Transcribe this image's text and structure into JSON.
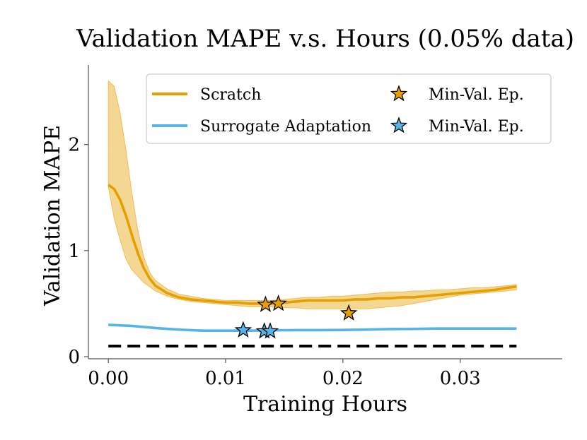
{
  "chart_data": {
    "type": "line",
    "title": "Validation MAPE v.s. Hours (0.05% data)",
    "xlabel": "Training Hours",
    "ylabel": "Validation MAPE",
    "xlim": [
      -0.0017,
      0.0387
    ],
    "ylim": [
      -0.02,
      2.75
    ],
    "xticks": [
      0.0,
      0.01,
      0.02,
      0.03
    ],
    "xtick_labels": [
      "0.00",
      "0.01",
      "0.02",
      "0.03"
    ],
    "yticks": [
      0,
      1,
      2
    ],
    "ytick_labels": [
      "0",
      "1",
      "2"
    ],
    "grid": false,
    "legend_position": "top-right",
    "colors": {
      "scratch": "#E69F00",
      "surrogate": "#56B4E9",
      "baseline": "#000000"
    },
    "series": [
      {
        "name": "Scratch",
        "color": "#E69F00",
        "x": [
          0.0,
          0.0005,
          0.001,
          0.0015,
          0.002,
          0.0025,
          0.003,
          0.0035,
          0.004,
          0.005,
          0.006,
          0.007,
          0.008,
          0.009,
          0.01,
          0.011,
          0.012,
          0.013,
          0.014,
          0.015,
          0.016,
          0.017,
          0.018,
          0.019,
          0.02,
          0.021,
          0.022,
          0.023,
          0.024,
          0.025,
          0.026,
          0.027,
          0.028,
          0.029,
          0.03,
          0.031,
          0.032,
          0.033,
          0.034,
          0.0348
        ],
        "values": [
          1.62,
          1.58,
          1.48,
          1.33,
          1.15,
          0.98,
          0.84,
          0.74,
          0.67,
          0.6,
          0.56,
          0.54,
          0.53,
          0.52,
          0.51,
          0.51,
          0.5,
          0.5,
          0.5,
          0.51,
          0.52,
          0.53,
          0.53,
          0.53,
          0.53,
          0.54,
          0.54,
          0.55,
          0.55,
          0.56,
          0.56,
          0.57,
          0.58,
          0.59,
          0.6,
          0.61,
          0.62,
          0.63,
          0.65,
          0.66
        ],
        "lower": [
          1.6,
          1.3,
          1.1,
          0.92,
          0.82,
          0.76,
          0.7,
          0.66,
          0.62,
          0.57,
          0.54,
          0.52,
          0.51,
          0.5,
          0.49,
          0.48,
          0.47,
          0.47,
          0.47,
          0.46,
          0.46,
          0.45,
          0.45,
          0.45,
          0.45,
          0.45,
          0.45,
          0.46,
          0.47,
          0.48,
          0.5,
          0.52,
          0.54,
          0.56,
          0.58,
          0.59,
          0.6,
          0.61,
          0.62,
          0.63
        ],
        "upper": [
          2.6,
          2.55,
          2.3,
          1.95,
          1.55,
          1.2,
          0.95,
          0.8,
          0.72,
          0.64,
          0.59,
          0.57,
          0.55,
          0.54,
          0.53,
          0.53,
          0.53,
          0.53,
          0.53,
          0.54,
          0.55,
          0.56,
          0.56,
          0.57,
          0.57,
          0.58,
          0.59,
          0.6,
          0.61,
          0.61,
          0.62,
          0.62,
          0.63,
          0.63,
          0.64,
          0.65,
          0.65,
          0.66,
          0.67,
          0.68
        ]
      },
      {
        "name": "Surrogate Adaptation",
        "color": "#56B4E9",
        "x": [
          0.0,
          0.002,
          0.004,
          0.006,
          0.008,
          0.01,
          0.012,
          0.014,
          0.016,
          0.018,
          0.02,
          0.022,
          0.024,
          0.026,
          0.028,
          0.03,
          0.032,
          0.034,
          0.0348
        ],
        "values": [
          0.3,
          0.29,
          0.27,
          0.255,
          0.245,
          0.245,
          0.245,
          0.248,
          0.25,
          0.25,
          0.252,
          0.255,
          0.26,
          0.262,
          0.265,
          0.265,
          0.265,
          0.265,
          0.265
        ]
      },
      {
        "name": "",
        "color": "#000000",
        "dashed": true,
        "x": [
          0.0,
          0.0348
        ],
        "values": [
          0.1,
          0.1
        ]
      }
    ],
    "markers": [
      {
        "series": "Scratch",
        "label": "Min-Val. Ep.",
        "color": "#E69F00",
        "points": [
          {
            "x": 0.0134,
            "y": 0.49
          },
          {
            "x": 0.0145,
            "y": 0.5
          },
          {
            "x": 0.0205,
            "y": 0.41
          }
        ]
      },
      {
        "series": "Surrogate Adaptation",
        "label": "Min-Val. Ep.",
        "color": "#56B4E9",
        "points": [
          {
            "x": 0.0115,
            "y": 0.25
          },
          {
            "x": 0.0133,
            "y": 0.24
          },
          {
            "x": 0.0138,
            "y": 0.24
          }
        ]
      }
    ]
  },
  "legend": {
    "entries": [
      {
        "label": "Scratch",
        "kind": "line",
        "color": "#E69F00"
      },
      {
        "label": "Min-Val. Ep.",
        "kind": "star",
        "color": "#E69F00"
      },
      {
        "label": "Surrogate Adaptation",
        "kind": "line",
        "color": "#56B4E9"
      },
      {
        "label": "Min-Val. Ep.",
        "kind": "star",
        "color": "#56B4E9"
      }
    ]
  }
}
